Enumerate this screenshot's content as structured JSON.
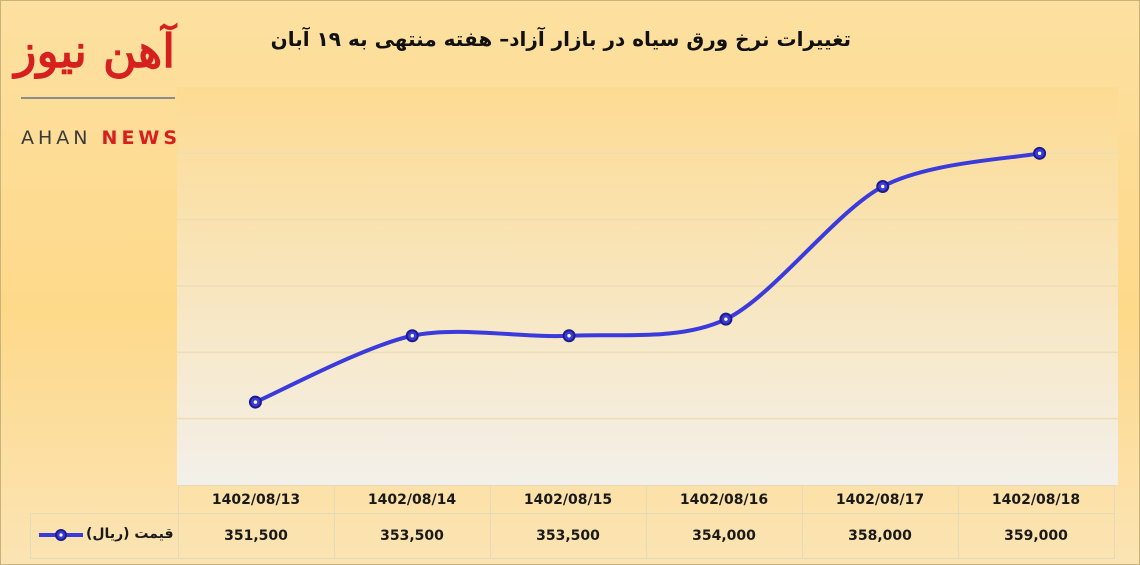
{
  "branding": {
    "logo_mark": "آهن نیوز",
    "logo_word_1": "AHAN",
    "logo_word_2": "NEWS"
  },
  "chart_data": {
    "type": "line",
    "title": "تغییرات نرخ ورق سیاه در بازار آزاد– هفته منتهی به ۱۹ آبان",
    "categories": [
      "1402/08/13",
      "1402/08/14",
      "1402/08/15",
      "1402/08/16",
      "1402/08/17",
      "1402/08/18"
    ],
    "series": [
      {
        "name": "قیمت (ریال)",
        "values": [
          351500,
          353500,
          353500,
          354000,
          358000,
          359000
        ],
        "value_labels": [
          "351,500",
          "353,500",
          "353,500",
          "354,000",
          "358,000",
          "359,000"
        ],
        "color": "#3b3bdc",
        "smooth": true
      }
    ],
    "ylim": [
      349000,
      361000
    ],
    "y_grid_step": 2000,
    "grid": true,
    "legend_position": "data-table",
    "xlabel": "",
    "ylabel": "",
    "colors": {
      "line": "#3b3bdc",
      "marker_edge": "#1d1d8a",
      "grid": "#eedcb2",
      "plot_bg_top": "#fddb92",
      "plot_bg_bottom": "#f3f0ea"
    }
  }
}
